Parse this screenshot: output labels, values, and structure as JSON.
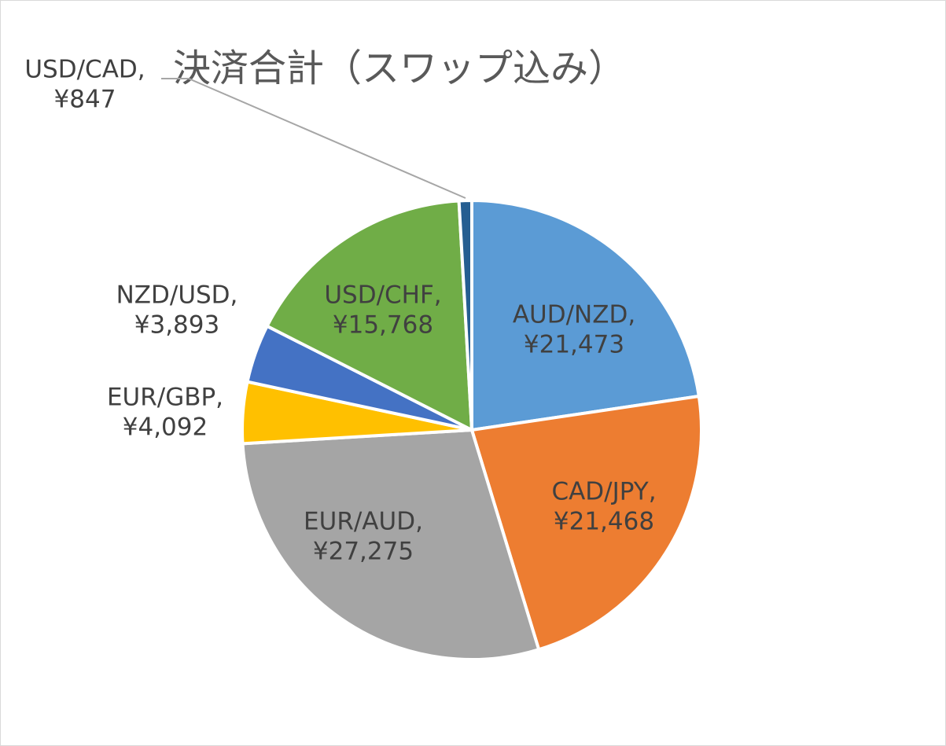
{
  "chart_data": {
    "type": "pie",
    "title": "決済合計（スワップ込み）",
    "categories": [
      "AUD/NZD,",
      "CAD/JPY,",
      "EUR/AUD,",
      "EUR/GBP,",
      "NZD/USD,",
      "USD/CHF,",
      "USD/CAD,"
    ],
    "values": [
      21473,
      21468,
      27275,
      4092,
      3893,
      15768,
      847
    ],
    "value_labels": [
      "¥21,473",
      "¥21,468",
      "¥27,275",
      "¥4,092",
      "¥3,893",
      "¥15,768",
      "¥847"
    ],
    "colors": [
      "#5b9bd5",
      "#ed7d31",
      "#a5a5a5",
      "#ffc000",
      "#4472c4",
      "#70ad47",
      "#255e91"
    ]
  }
}
